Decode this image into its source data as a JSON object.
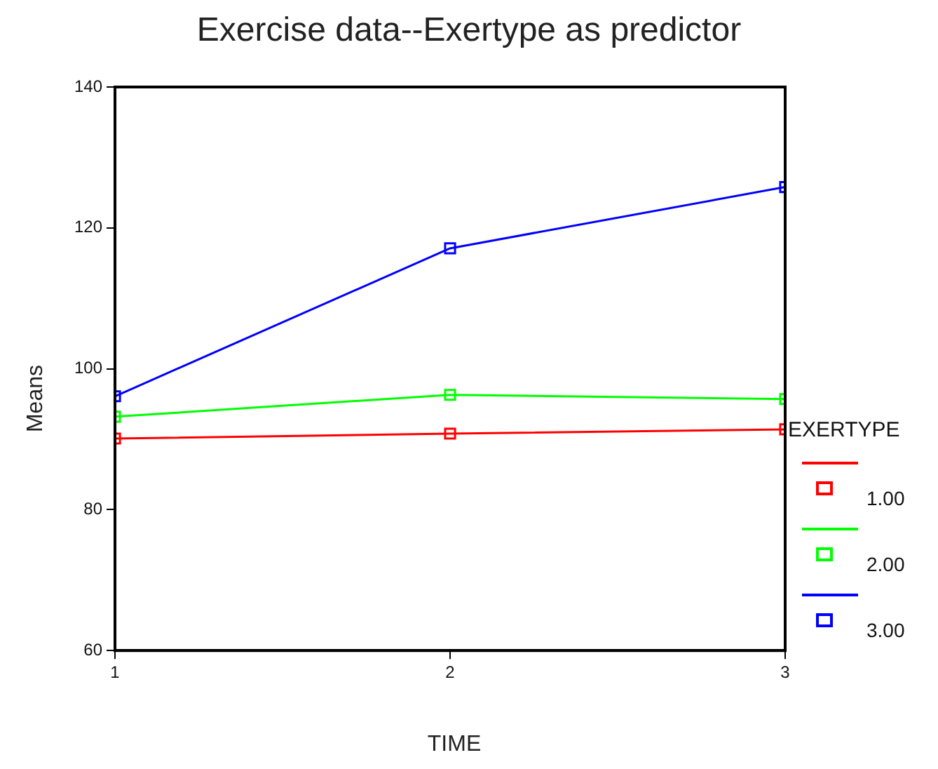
{
  "chart_data": {
    "type": "line",
    "title": "Exercise data--Exertype as predictor",
    "xlabel": "TIME",
    "ylabel": "Means",
    "legend_title": "EXERTYPE",
    "x": [
      1,
      2,
      3
    ],
    "xlim": [
      1,
      3
    ],
    "xticks": [
      1,
      2,
      3
    ],
    "ylim": [
      60,
      140
    ],
    "yticks": [
      60,
      80,
      100,
      120,
      140
    ],
    "series": [
      {
        "name": "1.00",
        "color": "#ff0000",
        "values": [
          90.1,
          90.8,
          91.4
        ]
      },
      {
        "name": "2.00",
        "color": "#00ff00",
        "values": [
          93.2,
          96.3,
          95.7
        ]
      },
      {
        "name": "3.00",
        "color": "#0000ff",
        "values": [
          96.1,
          117.1,
          125.8
        ]
      }
    ],
    "marker": "square",
    "line_style": "solid",
    "grid": false,
    "legend": "right"
  }
}
